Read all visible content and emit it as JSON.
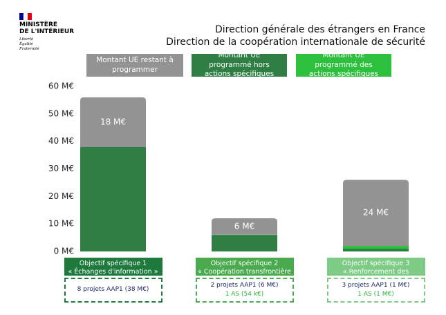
{
  "header": {
    "ministry": [
      "MINISTÈRE",
      "DE L'INTÉRIEUR"
    ],
    "motto": [
      "Liberté",
      "Égalité",
      "Fraternité"
    ],
    "title": [
      "Direction générale des étrangers en France",
      "Direction de la coopération internationale de sécurité"
    ]
  },
  "chart_data": {
    "type": "bar",
    "stacked": true,
    "categories": [
      "Objectif spécifique 1",
      "Objectif spécifique 2",
      "Objectif spécifique 3"
    ],
    "category_subtitles": [
      "« Échanges d'information »",
      "« Coopération transfrontière »",
      "« Renforcement des capacités »"
    ],
    "category_colors": [
      "#1e7a3c",
      "#4aaa4e",
      "#7ecb86"
    ],
    "projects": [
      [
        "8 projets AAP1 (38 M€)"
      ],
      [
        "2 projets AAP1 (6 M€)",
        "1 AS (54 k€)"
      ],
      [
        "3 projets AAP1 (1 M€)",
        "1 AS (1 M€)"
      ]
    ],
    "series": [
      {
        "name": "Montant UE restant à programmer",
        "color": "#939393",
        "values": [
          18,
          6,
          24
        ],
        "value_labels": [
          "18 M€",
          "6 M€",
          "24 M€"
        ]
      },
      {
        "name": "Montant UE programmé hors actions spécifiques",
        "color": "#2f7f45",
        "values": [
          38,
          6,
          1
        ]
      },
      {
        "name": "Montant UE programmé des actions spécifiques",
        "color": "#2dc03c",
        "values": [
          0,
          0.054,
          1
        ]
      }
    ],
    "ylim": [
      0,
      60
    ],
    "yticks": [
      {
        "value": 0,
        "label": "0 M€"
      },
      {
        "value": 10,
        "label": "10 M€"
      },
      {
        "value": 20,
        "label": "20 M€"
      },
      {
        "value": 30,
        "label": "30 M€"
      },
      {
        "value": 40,
        "label": "40 M€"
      },
      {
        "value": 50,
        "label": "50 M€"
      },
      {
        "value": 60,
        "label": "60 M€"
      }
    ]
  }
}
